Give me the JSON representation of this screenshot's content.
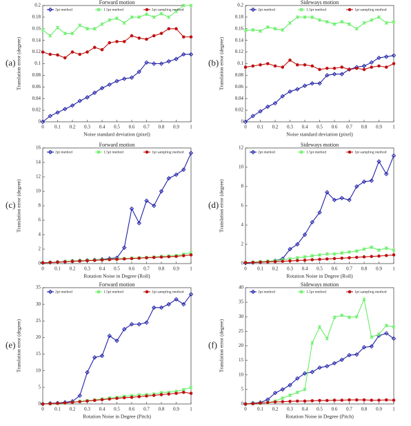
{
  "chart_data": [
    {
      "type": "line",
      "panel_label": "(a)",
      "title": "Forward motion",
      "x_label": "Noise standard deviation (pixel)",
      "y_label": "Translation error (degree)",
      "x": [
        0,
        0.05,
        0.1,
        0.15,
        0.2,
        0.25,
        0.3,
        0.35,
        0.4,
        0.45,
        0.5,
        0.55,
        0.6,
        0.65,
        0.7,
        0.75,
        0.8,
        0.85,
        0.9,
        0.95,
        1
      ],
      "xlim": [
        0,
        1
      ],
      "xticks": [
        0,
        0.1,
        0.2,
        0.3,
        0.4,
        0.5,
        0.6,
        0.7,
        0.8,
        0.9,
        1
      ],
      "ylim": [
        0,
        0.2
      ],
      "yticks": [
        0,
        0.02,
        0.04,
        0.06,
        0.08,
        0.1,
        0.12,
        0.14,
        0.16,
        0.18,
        0.2
      ],
      "series": [
        {
          "name": "2pt method",
          "color": "#1f1fa8",
          "values": [
            0,
            0.01,
            0.016,
            0.022,
            0.028,
            0.036,
            0.042,
            0.05,
            0.058,
            0.064,
            0.07,
            0.074,
            0.076,
            0.086,
            0.102,
            0.1,
            0.1,
            0.104,
            0.108,
            0.116,
            0.116
          ]
        },
        {
          "name": "1.5pt method",
          "color": "#66ee66",
          "values": [
            0.158,
            0.148,
            0.162,
            0.152,
            0.152,
            0.166,
            0.16,
            0.16,
            0.168,
            0.175,
            0.178,
            0.17,
            0.18,
            0.18,
            0.185,
            0.18,
            0.186,
            0.18,
            0.19,
            0.2,
            0.2
          ]
        },
        {
          "name": "1pt sampling method",
          "color": "#c01010",
          "values": [
            0.12,
            0.116,
            0.115,
            0.11,
            0.12,
            0.116,
            0.12,
            0.128,
            0.124,
            0.136,
            0.138,
            0.138,
            0.148,
            0.144,
            0.142,
            0.148,
            0.152,
            0.16,
            0.16,
            0.146,
            0.146
          ]
        }
      ]
    },
    {
      "type": "line",
      "panel_label": "(b)",
      "title": "Sideways motion",
      "x_label": "Noise standard deviation (pixel)",
      "y_label": "Translation error (degree)",
      "x": [
        0,
        0.05,
        0.1,
        0.15,
        0.2,
        0.25,
        0.3,
        0.35,
        0.4,
        0.45,
        0.5,
        0.55,
        0.6,
        0.65,
        0.7,
        0.75,
        0.8,
        0.85,
        0.9,
        0.95,
        1
      ],
      "xlim": [
        0,
        1
      ],
      "xticks": [
        0,
        0.1,
        0.2,
        0.3,
        0.4,
        0.5,
        0.6,
        0.7,
        0.8,
        0.9,
        1
      ],
      "ylim": [
        0,
        0.2
      ],
      "yticks": [
        0,
        0.02,
        0.04,
        0.06,
        0.08,
        0.1,
        0.12,
        0.14,
        0.16,
        0.18,
        0.2
      ],
      "series": [
        {
          "name": "2pt method",
          "color": "#1f1fa8",
          "values": [
            0,
            0.01,
            0.018,
            0.026,
            0.032,
            0.044,
            0.052,
            0.056,
            0.062,
            0.066,
            0.066,
            0.08,
            0.082,
            0.082,
            0.09,
            0.094,
            0.096,
            0.102,
            0.11,
            0.112,
            0.114
          ]
        },
        {
          "name": "1.5pt method",
          "color": "#66ee66",
          "values": [
            0.157,
            0.158,
            0.156,
            0.163,
            0.16,
            0.158,
            0.17,
            0.18,
            0.18,
            0.18,
            0.175,
            0.172,
            0.168,
            0.172,
            0.168,
            0.16,
            0.17,
            0.175,
            0.18,
            0.17,
            0.172
          ]
        },
        {
          "name": "1pt sampling method",
          "color": "#c01010",
          "values": [
            0.094,
            0.096,
            0.098,
            0.1,
            0.096,
            0.094,
            0.106,
            0.098,
            0.098,
            0.096,
            0.09,
            0.092,
            0.092,
            0.094,
            0.09,
            0.092,
            0.09,
            0.094,
            0.096,
            0.094,
            0.1
          ]
        }
      ]
    },
    {
      "type": "line",
      "panel_label": "(c)",
      "title": "Forward motion",
      "x_label": "Rotation Noise in Degree (Roll)",
      "y_label": "Translation error (degree)",
      "x": [
        0,
        0.05,
        0.1,
        0.15,
        0.2,
        0.25,
        0.3,
        0.35,
        0.4,
        0.45,
        0.5,
        0.55,
        0.6,
        0.65,
        0.7,
        0.75,
        0.8,
        0.85,
        0.9,
        0.95,
        1
      ],
      "xlim": [
        0,
        1
      ],
      "xticks": [
        0,
        0.1,
        0.2,
        0.3,
        0.4,
        0.5,
        0.6,
        0.7,
        0.8,
        0.9,
        1
      ],
      "ylim": [
        0,
        16
      ],
      "yticks": [
        0,
        2,
        4,
        6,
        8,
        10,
        12,
        14,
        16
      ],
      "series": [
        {
          "name": "2pt method",
          "color": "#1f1fa8",
          "values": [
            0.1,
            0.15,
            0.2,
            0.25,
            0.35,
            0.4,
            0.45,
            0.5,
            0.6,
            0.7,
            0.8,
            2.2,
            7.6,
            5.6,
            8.7,
            8,
            10,
            11.8,
            12.3,
            13,
            15.3
          ]
        },
        {
          "name": "1.5pt method",
          "color": "#66ee66",
          "values": [
            0.1,
            0.15,
            0.2,
            0.3,
            0.35,
            0.4,
            0.45,
            0.5,
            0.55,
            0.6,
            0.65,
            0.7,
            0.75,
            0.8,
            0.85,
            0.9,
            1,
            1.05,
            1.1,
            1.3,
            1.5
          ]
        },
        {
          "name": "1pt sampling method",
          "color": "#c01010",
          "values": [
            0.1,
            0.15,
            0.2,
            0.25,
            0.3,
            0.35,
            0.4,
            0.45,
            0.5,
            0.55,
            0.6,
            0.65,
            0.7,
            0.75,
            0.8,
            0.85,
            0.9,
            0.95,
            1,
            1.1,
            1.2
          ]
        }
      ]
    },
    {
      "type": "line",
      "panel_label": "(d)",
      "title": "Sideways motion",
      "x_label": "Rotation Noise in Degree (Roll)",
      "y_label": "Translation error (degree)",
      "x": [
        0,
        0.05,
        0.1,
        0.15,
        0.2,
        0.25,
        0.3,
        0.35,
        0.4,
        0.45,
        0.5,
        0.55,
        0.6,
        0.65,
        0.7,
        0.75,
        0.8,
        0.85,
        0.9,
        0.95,
        1
      ],
      "xlim": [
        0,
        1
      ],
      "xticks": [
        0,
        0.1,
        0.2,
        0.3,
        0.4,
        0.5,
        0.6,
        0.7,
        0.8,
        0.9,
        1
      ],
      "ylim": [
        0,
        12
      ],
      "yticks": [
        0,
        2,
        4,
        6,
        8,
        10,
        12
      ],
      "series": [
        {
          "name": "2pt method",
          "color": "#1f1fa8",
          "values": [
            0.05,
            0.1,
            0.15,
            0.2,
            0.3,
            0.5,
            1.5,
            2,
            3,
            4.3,
            5.3,
            7.4,
            6.6,
            6.8,
            6.6,
            8,
            8.5,
            8.6,
            10.6,
            9.3,
            11.2
          ]
        },
        {
          "name": "1.5pt method",
          "color": "#66ee66",
          "values": [
            0.1,
            0.15,
            0.2,
            0.25,
            0.3,
            0.4,
            0.5,
            0.6,
            0.7,
            0.8,
            0.9,
            1,
            1,
            1.1,
            1.2,
            1.3,
            1.5,
            1.7,
            1.4,
            1.6,
            1.4
          ]
        },
        {
          "name": "1pt sampling method",
          "color": "#c01010",
          "values": [
            0.1,
            0.12,
            0.15,
            0.18,
            0.2,
            0.24,
            0.28,
            0.32,
            0.35,
            0.4,
            0.44,
            0.48,
            0.52,
            0.56,
            0.6,
            0.65,
            0.7,
            0.74,
            0.78,
            0.84,
            0.9
          ]
        }
      ]
    },
    {
      "type": "line",
      "panel_label": "(e)",
      "title": "Forward motion",
      "x_label": "Rotation Noise in Degree (Pitch)",
      "y_label": "Translation error (degree)",
      "x": [
        0,
        0.05,
        0.1,
        0.15,
        0.2,
        0.25,
        0.3,
        0.35,
        0.4,
        0.45,
        0.5,
        0.55,
        0.6,
        0.65,
        0.7,
        0.75,
        0.8,
        0.85,
        0.9,
        0.95,
        1
      ],
      "xlim": [
        0,
        1
      ],
      "xticks": [
        0,
        0.1,
        0.2,
        0.3,
        0.4,
        0.5,
        0.6,
        0.7,
        0.8,
        0.9,
        1
      ],
      "ylim": [
        0,
        35
      ],
      "yticks": [
        0,
        5,
        10,
        15,
        20,
        25,
        30,
        35
      ],
      "series": [
        {
          "name": "2pt method",
          "color": "#1f1fa8",
          "values": [
            0,
            0.2,
            0.3,
            0.5,
            0.8,
            2.5,
            9.5,
            14,
            14.5,
            20.5,
            19,
            22.5,
            24,
            24,
            24.5,
            29,
            29,
            30,
            31.5,
            30,
            33
          ]
        },
        {
          "name": "1.5pt method",
          "color": "#66ee66",
          "values": [
            0,
            0.1,
            0.2,
            0.3,
            0.5,
            0.8,
            1,
            1.2,
            1.5,
            1.8,
            2,
            2.3,
            2.5,
            2.7,
            2.8,
            3,
            3.4,
            3.5,
            3.8,
            4.3,
            5
          ]
        },
        {
          "name": "1pt sampling method",
          "color": "#c01010",
          "values": [
            0,
            0.1,
            0.2,
            0.3,
            0.5,
            0.7,
            0.9,
            1.1,
            1.3,
            1.5,
            1.7,
            1.9,
            2,
            2.2,
            2.4,
            2.6,
            2.8,
            3,
            3.2,
            3.5,
            3.2
          ]
        }
      ]
    },
    {
      "type": "line",
      "panel_label": "(f)",
      "title": "Sideways motion",
      "x_label": "Rotation Noise in Degree (Pitch)",
      "y_label": "Translation error (degree)",
      "x": [
        0,
        0.05,
        0.1,
        0.15,
        0.2,
        0.25,
        0.3,
        0.35,
        0.4,
        0.45,
        0.5,
        0.55,
        0.6,
        0.65,
        0.7,
        0.75,
        0.8,
        0.85,
        0.9,
        0.95,
        1
      ],
      "xlim": [
        0,
        1
      ],
      "xticks": [
        0,
        0.1,
        0.2,
        0.3,
        0.4,
        0.5,
        0.6,
        0.7,
        0.8,
        0.9,
        1
      ],
      "ylim": [
        0,
        40
      ],
      "yticks": [
        0,
        5,
        10,
        15,
        20,
        25,
        30,
        35,
        40
      ],
      "series": [
        {
          "name": "2pt method",
          "color": "#1f1fa8",
          "values": [
            0,
            0.3,
            0.5,
            1.5,
            3.8,
            5,
            6.5,
            8.8,
            10.5,
            11,
            12.5,
            13,
            14,
            15.2,
            16.8,
            17,
            19.5,
            19.8,
            23.5,
            24.3,
            22.5
          ]
        },
        {
          "name": "1.5pt method",
          "color": "#66ee66",
          "values": [
            0,
            0.2,
            0.3,
            0.5,
            1,
            2,
            3,
            4,
            5,
            21,
            26.5,
            22.5,
            29.8,
            30.5,
            29.8,
            30,
            36,
            23,
            24,
            27,
            26.5
          ]
        },
        {
          "name": "1pt sampling method",
          "color": "#c01010",
          "values": [
            0,
            0.1,
            0.3,
            0.5,
            0.7,
            0.8,
            0.9,
            1,
            1,
            1.1,
            1.2,
            1.2,
            1.3,
            1.3,
            1.4,
            1.4,
            1.4,
            1.3,
            1.3,
            1.4,
            1.3
          ]
        }
      ]
    }
  ]
}
